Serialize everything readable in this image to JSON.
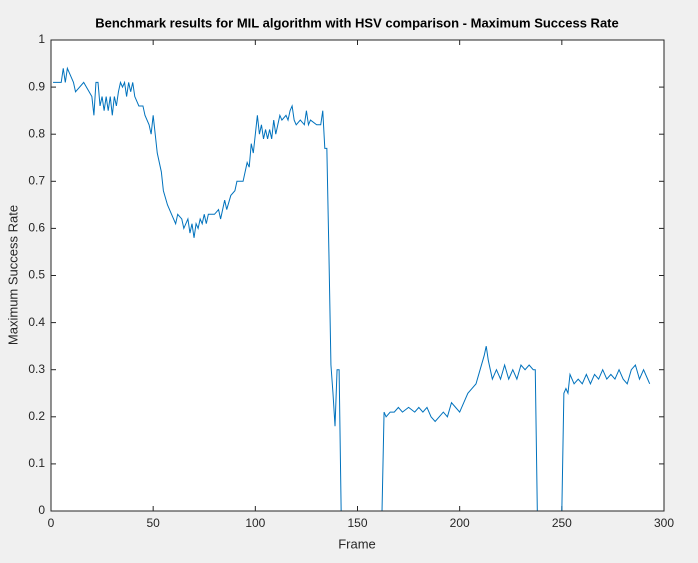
{
  "chart_data": {
    "type": "line",
    "title": "Benchmark results for MIL algorithm with HSV comparison - Maximum Success Rate",
    "x_label": "Frame",
    "y_label": "Maximum Success Rate",
    "xlim": [
      0,
      300
    ],
    "xticks": [
      0,
      50,
      100,
      150,
      200,
      250,
      300
    ],
    "ylim": [
      0,
      1
    ],
    "yticks": [
      0,
      0.1,
      0.2,
      0.3,
      0.4,
      0.5,
      0.6,
      0.7,
      0.8,
      0.9,
      1
    ],
    "series": [
      {
        "color": "#0072bd",
        "x": [
          1,
          5,
          6,
          7,
          8,
          10,
          11,
          12,
          16,
          20,
          21,
          22,
          23,
          24,
          25,
          26,
          27,
          28,
          29,
          30,
          31,
          32,
          33,
          34,
          35,
          36,
          37,
          38,
          39,
          40,
          41,
          43,
          45,
          46,
          48,
          49,
          50,
          51,
          52,
          54,
          55,
          57,
          59,
          61,
          62,
          64,
          65,
          67,
          68,
          69,
          70,
          71,
          72,
          73,
          74,
          75,
          76,
          77,
          80,
          82,
          83,
          85,
          86,
          88,
          90,
          91,
          94,
          95,
          96,
          97,
          98,
          99,
          100,
          101,
          102,
          103,
          104,
          105,
          106,
          107,
          108,
          109,
          110,
          111,
          112,
          113,
          115,
          116,
          117,
          118,
          119,
          120,
          122,
          124,
          125,
          126,
          127,
          130,
          132,
          133,
          134,
          135,
          136,
          137,
          138,
          139,
          140,
          141,
          142,
          162,
          163,
          164,
          166,
          168,
          170,
          172,
          175,
          178,
          180,
          182,
          184,
          186,
          188,
          190,
          192,
          194,
          196,
          198,
          200,
          202,
          204,
          206,
          208,
          210,
          212,
          213,
          214,
          216,
          218,
          220,
          222,
          224,
          226,
          228,
          230,
          232,
          234,
          236,
          237,
          238,
          250,
          251,
          252,
          253,
          254,
          256,
          258,
          260,
          262,
          264,
          266,
          268,
          270,
          272,
          274,
          276,
          278,
          280,
          282,
          284,
          286,
          288,
          290,
          292,
          293
        ],
        "values": [
          0.91,
          0.91,
          0.94,
          0.91,
          0.94,
          0.92,
          0.91,
          0.89,
          0.91,
          0.88,
          0.84,
          0.91,
          0.91,
          0.86,
          0.88,
          0.85,
          0.88,
          0.85,
          0.88,
          0.84,
          0.88,
          0.86,
          0.89,
          0.91,
          0.9,
          0.91,
          0.88,
          0.91,
          0.89,
          0.91,
          0.88,
          0.86,
          0.86,
          0.84,
          0.82,
          0.8,
          0.84,
          0.8,
          0.76,
          0.72,
          0.68,
          0.65,
          0.63,
          0.61,
          0.63,
          0.62,
          0.6,
          0.62,
          0.59,
          0.61,
          0.58,
          0.61,
          0.6,
          0.62,
          0.61,
          0.63,
          0.61,
          0.63,
          0.63,
          0.64,
          0.62,
          0.66,
          0.64,
          0.67,
          0.68,
          0.7,
          0.7,
          0.72,
          0.74,
          0.73,
          0.78,
          0.76,
          0.8,
          0.84,
          0.8,
          0.82,
          0.79,
          0.81,
          0.79,
          0.81,
          0.79,
          0.83,
          0.8,
          0.82,
          0.84,
          0.83,
          0.84,
          0.83,
          0.85,
          0.86,
          0.83,
          0.82,
          0.83,
          0.82,
          0.85,
          0.82,
          0.83,
          0.82,
          0.82,
          0.85,
          0.77,
          0.77,
          0.55,
          0.31,
          0.25,
          0.18,
          0.3,
          0.3,
          0,
          0,
          0.21,
          0.2,
          0.21,
          0.21,
          0.22,
          0.21,
          0.22,
          0.21,
          0.22,
          0.21,
          0.22,
          0.2,
          0.19,
          0.2,
          0.21,
          0.2,
          0.23,
          0.22,
          0.21,
          0.23,
          0.25,
          0.26,
          0.27,
          0.3,
          0.33,
          0.35,
          0.32,
          0.28,
          0.3,
          0.28,
          0.31,
          0.28,
          0.3,
          0.28,
          0.31,
          0.3,
          0.31,
          0.3,
          0.3,
          0,
          0,
          0.25,
          0.26,
          0.25,
          0.29,
          0.27,
          0.28,
          0.27,
          0.29,
          0.27,
          0.29,
          0.28,
          0.3,
          0.28,
          0.29,
          0.28,
          0.3,
          0.28,
          0.27,
          0.3,
          0.31,
          0.28,
          0.3,
          0.28,
          0.27
        ]
      }
    ]
  }
}
